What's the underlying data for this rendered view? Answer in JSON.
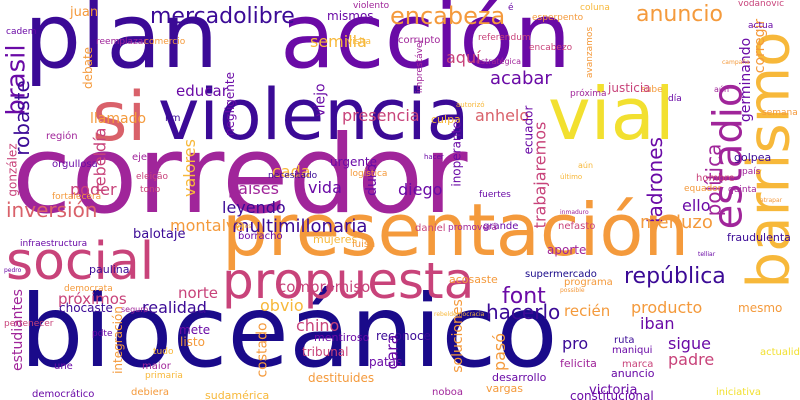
{
  "title": "",
  "palette": {
    "deep_blue": "#1a0a8a",
    "indigo": "#3b0a96",
    "violet": "#6a0aa6",
    "magenta": "#a0259a",
    "pink": "#c8437a",
    "rose": "#d9616a",
    "orange": "#f49a3c",
    "amber": "#f7b83a",
    "yellow": "#f2e030",
    "purple": "#8a17a0"
  },
  "words": [
    {
      "text": "corredor",
      "color": "#a0259a",
      "orient": "h"
    },
    {
      "text": "bioceánico",
      "color": "#1a0a8a",
      "orient": "h"
    },
    {
      "text": "plan",
      "color": "#3b0a96",
      "orient": "h"
    },
    {
      "text": "acción",
      "color": "#6a0aa6",
      "orient": "h"
    },
    {
      "text": "presentación",
      "color": "#f49a3c",
      "orient": "h"
    },
    {
      "text": "violencia",
      "color": "#3b0a96",
      "orient": "h"
    },
    {
      "text": "vial",
      "color": "#f2e030",
      "orient": "h"
    },
    {
      "text": "si",
      "color": "#d9616a",
      "orient": "h"
    },
    {
      "text": "social",
      "color": "#c8437a",
      "orient": "h"
    },
    {
      "text": "barrismo",
      "color": "#f7b83a",
      "orient": "v"
    },
    {
      "text": "propuesta",
      "color": "#c8437a",
      "orient": "h"
    },
    {
      "text": "estadio",
      "color": "#a0259a",
      "orient": "v"
    },
    {
      "text": "brasil",
      "color": "#6a0aa6",
      "orient": "v"
    },
    {
      "text": "mercadolibre",
      "color": "#3b0a96",
      "orient": "h"
    },
    {
      "text": "encabeza",
      "color": "#f49a3c",
      "orient": "h"
    },
    {
      "text": "anuncio",
      "color": "#f49a3c",
      "orient": "h"
    },
    {
      "text": "república",
      "color": "#3b0a96",
      "orient": "h"
    },
    {
      "text": "font",
      "color": "#6a0aa6",
      "orient": "h"
    },
    {
      "text": "inversión",
      "color": "#d9616a",
      "orient": "h"
    },
    {
      "text": "multimillonaria",
      "color": "#3b0a96",
      "orient": "h"
    },
    {
      "text": "hacerlo",
      "color": "#3b0a96",
      "orient": "h"
    },
    {
      "text": "política",
      "color": "#a0259a",
      "orient": "v"
    },
    {
      "text": "ladrones",
      "color": "#6a0aa6",
      "orient": "v"
    },
    {
      "text": "presencia",
      "color": "#c8437a",
      "orient": "h"
    },
    {
      "text": "acabar",
      "color": "#6a0aa6",
      "orient": "h"
    },
    {
      "text": "aquí",
      "color": "#c8437a",
      "orient": "h"
    },
    {
      "text": "semilla",
      "color": "#f7b83a",
      "orient": "h"
    },
    {
      "text": "educar",
      "color": "#6a0aa6",
      "orient": "h"
    },
    {
      "text": "llamado",
      "color": "#f49a3c",
      "orient": "h"
    },
    {
      "text": "anhelo",
      "color": "#d9616a",
      "orient": "h"
    },
    {
      "text": "robaste",
      "color": "#3b0a96",
      "orient": "v"
    },
    {
      "text": "rebeldía",
      "color": "#c8437a",
      "orient": "v"
    },
    {
      "text": "germinando",
      "color": "#6a0aa6",
      "orient": "v"
    },
    {
      "text": "corregir",
      "color": "#f49a3c",
      "orient": "v"
    },
    {
      "text": "valores",
      "color": "#f7b83a",
      "orient": "v"
    },
    {
      "text": "trabajaremos",
      "color": "#c8437a",
      "orient": "v"
    },
    {
      "text": "cada",
      "color": "#f7b83a",
      "orient": "h"
    },
    {
      "text": "poder",
      "color": "#c8437a",
      "orient": "h"
    },
    {
      "text": "países",
      "color": "#a0259a",
      "orient": "h"
    },
    {
      "text": "vida",
      "color": "#6a0aa6",
      "orient": "h"
    },
    {
      "text": "leyendo",
      "color": "#3b0a96",
      "orient": "h"
    },
    {
      "text": "diego",
      "color": "#6a0aa6",
      "orient": "h"
    },
    {
      "text": "ello",
      "color": "#6a0aa6",
      "orient": "h"
    },
    {
      "text": "merluzo",
      "color": "#f49a3c",
      "orient": "h"
    },
    {
      "text": "montalva",
      "color": "#f49a3c",
      "orient": "h"
    },
    {
      "text": "norte",
      "color": "#c8437a",
      "orient": "h"
    },
    {
      "text": "realidad",
      "color": "#3b0a96",
      "orient": "h"
    },
    {
      "text": "obvio",
      "color": "#f7b83a",
      "orient": "h"
    },
    {
      "text": "compromiso",
      "color": "#c8437a",
      "orient": "h"
    },
    {
      "text": "producto",
      "color": "#f49a3c",
      "orient": "h"
    },
    {
      "text": "chino",
      "color": "#c8437a",
      "orient": "h"
    },
    {
      "text": "costado",
      "color": "#f49a3c",
      "orient": "v"
    },
    {
      "text": "estudiantes",
      "color": "#a0259a",
      "orient": "v"
    },
    {
      "text": "próximos",
      "color": "#c8437a",
      "orient": "h"
    },
    {
      "text": "sigue",
      "color": "#6a0aa6",
      "orient": "h"
    },
    {
      "text": "padre",
      "color": "#c8437a",
      "orient": "h"
    },
    {
      "text": "pro",
      "color": "#3b0a96",
      "orient": "h"
    },
    {
      "text": "iban",
      "color": "#6a0aa6",
      "orient": "h"
    },
    {
      "text": "recién",
      "color": "#f49a3c",
      "orient": "h"
    },
    {
      "text": "pasó",
      "color": "#f49a3c",
      "orient": "v"
    },
    {
      "text": "cara",
      "color": "#6a0aa6",
      "orient": "v"
    },
    {
      "text": "soluciones",
      "color": "#f49a3c",
      "orient": "v"
    },
    {
      "text": "duro",
      "color": "#6a0aa6",
      "orient": "v"
    },
    {
      "text": "viejo",
      "color": "#6a0aa6",
      "orient": "v"
    },
    {
      "text": "juan",
      "color": "#f49a3c",
      "orient": "h"
    },
    {
      "text": "mismos",
      "color": "#6a0aa6",
      "orient": "h"
    },
    {
      "text": "vodanovic",
      "color": "#c8437a",
      "orient": "h"
    },
    {
      "text": "coluna",
      "color": "#f7b83a",
      "orient": "h"
    },
    {
      "text": "esperpento",
      "color": "#f49a3c",
      "orient": "h"
    },
    {
      "text": "violento",
      "color": "#a0259a",
      "orient": "h"
    },
    {
      "text": "referendum",
      "color": "#c8437a",
      "orient": "h"
    },
    {
      "text": "corrupto",
      "color": "#a0259a",
      "orient": "h"
    },
    {
      "text": "visita",
      "color": "#f7b83a",
      "orient": "h"
    },
    {
      "text": "reemplazar",
      "color": "#a0259a",
      "orient": "h"
    },
    {
      "text": "comercio",
      "color": "#f49a3c",
      "orient": "h"
    },
    {
      "text": "cadem",
      "color": "#6a0aa6",
      "orient": "h"
    },
    {
      "text": "sube",
      "color": "#f49a3c",
      "orient": "h"
    },
    {
      "text": "justicia",
      "color": "#c8437a",
      "orient": "h"
    },
    {
      "text": "culpa",
      "color": "#f7b83a",
      "orient": "h"
    },
    {
      "text": "urgente",
      "color": "#6a0aa6",
      "orient": "h"
    },
    {
      "text": "logística",
      "color": "#f49a3c",
      "orient": "h"
    },
    {
      "text": "necesitado",
      "color": "#3b0a96",
      "orient": "h"
    },
    {
      "text": "mujeres",
      "color": "#f7b83a",
      "orient": "h"
    },
    {
      "text": "luisa",
      "color": "#f49a3c",
      "orient": "h"
    },
    {
      "text": "daniel",
      "color": "#c8437a",
      "orient": "h"
    },
    {
      "text": "grande",
      "color": "#6a0aa6",
      "orient": "h"
    },
    {
      "text": "nefasto",
      "color": "#c8437a",
      "orient": "h"
    },
    {
      "text": "aporte",
      "color": "#a0259a",
      "orient": "h"
    },
    {
      "text": "supermercado",
      "color": "#1a0a8a",
      "orient": "h"
    },
    {
      "text": "acosaste",
      "color": "#f49a3c",
      "orient": "h"
    },
    {
      "text": "balotaje",
      "color": "#3b0a96",
      "orient": "h"
    },
    {
      "text": "borracho",
      "color": "#6a0aa6",
      "orient": "h"
    },
    {
      "text": "paulina",
      "color": "#3b0a96",
      "orient": "h"
    },
    {
      "text": "infraestructura",
      "color": "#6a0aa6",
      "orient": "h"
    },
    {
      "text": "chocaste",
      "color": "#3b0a96",
      "orient": "h"
    },
    {
      "text": "seguro",
      "color": "#a0259a",
      "orient": "h"
    },
    {
      "text": "democrata",
      "color": "#f49a3c",
      "orient": "h"
    },
    {
      "text": "mete",
      "color": "#6a0aa6",
      "orient": "h"
    },
    {
      "text": "listo",
      "color": "#f49a3c",
      "orient": "h"
    },
    {
      "text": "reconoce",
      "color": "#3b0a96",
      "orient": "h"
    },
    {
      "text": "mentiroso",
      "color": "#6a0aa6",
      "orient": "h"
    },
    {
      "text": "tribunal",
      "color": "#c8437a",
      "orient": "h"
    },
    {
      "text": "patas",
      "color": "#6a0aa6",
      "orient": "h"
    },
    {
      "text": "destituides",
      "color": "#f49a3c",
      "orient": "h"
    },
    {
      "text": "sudamérica",
      "color": "#f7b83a",
      "orient": "h"
    },
    {
      "text": "noboa",
      "color": "#a0259a",
      "orient": "h"
    },
    {
      "text": "vargas",
      "color": "#f49a3c",
      "orient": "h"
    },
    {
      "text": "victoria",
      "color": "#6a0aa6",
      "orient": "h"
    },
    {
      "text": "constitucional",
      "color": "#6a0aa6",
      "orient": "h"
    },
    {
      "text": "iniciativa",
      "color": "#f2e030",
      "orient": "h"
    },
    {
      "text": "actualidad",
      "color": "#f2e030",
      "orient": "h"
    },
    {
      "text": "democrático",
      "color": "#6a0aa6",
      "orient": "h"
    },
    {
      "text": "debiera",
      "color": "#f49a3c",
      "orient": "h"
    },
    {
      "text": "maior",
      "color": "#a0259a",
      "orient": "h"
    },
    {
      "text": "une",
      "color": "#6a0aa6",
      "orient": "h"
    },
    {
      "text": "primaria",
      "color": "#f7b83a",
      "orient": "h"
    },
    {
      "text": "desarrollo",
      "color": "#6a0aa6",
      "orient": "h"
    },
    {
      "text": "anuncio",
      "color": "#6a0aa6",
      "orient": "h"
    },
    {
      "text": "felicita",
      "color": "#a0259a",
      "orient": "h"
    },
    {
      "text": "marca",
      "color": "#c8437a",
      "orient": "h"
    },
    {
      "text": "maniqui",
      "color": "#6a0aa6",
      "orient": "h"
    },
    {
      "text": "ruta",
      "color": "#3b0a96",
      "orient": "h"
    },
    {
      "text": "mesmo",
      "color": "#f49a3c",
      "orient": "h"
    },
    {
      "text": "programa",
      "color": "#f49a3c",
      "orient": "h"
    },
    {
      "text": "pdte",
      "color": "#6a0aa6",
      "orient": "h"
    },
    {
      "text": "tudo",
      "color": "#f7b83a",
      "orient": "h"
    },
    {
      "text": "integración",
      "color": "#f49a3c",
      "orient": "v"
    },
    {
      "text": "pertenecer",
      "color": "#c8437a",
      "orient": "h"
    },
    {
      "text": "ejes",
      "color": "#a0259a",
      "orient": "h"
    },
    {
      "text": "eleição",
      "color": "#c8437a",
      "orient": "h"
    },
    {
      "text": "tono",
      "color": "#c8437a",
      "orient": "h"
    },
    {
      "text": "hombre",
      "color": "#c8437a",
      "orient": "h"
    },
    {
      "text": "equador",
      "color": "#f49a3c",
      "orient": "h"
    },
    {
      "text": "fuertes",
      "color": "#6a0aa6",
      "orient": "h"
    },
    {
      "text": "quinta",
      "color": "#a0259a",
      "orient": "h"
    },
    {
      "text": "golpea",
      "color": "#3b0a96",
      "orient": "h"
    },
    {
      "text": "país",
      "color": "#a0259a",
      "orient": "h"
    },
    {
      "text": "fraudulenta",
      "color": "#3b0a96",
      "orient": "h"
    },
    {
      "text": "semana",
      "color": "#f49a3c",
      "orient": "h"
    },
    {
      "text": "día",
      "color": "#6a0aa6",
      "orient": "h"
    },
    {
      "text": "actua",
      "color": "#6a0aa6",
      "orient": "h"
    },
    {
      "text": "promoverá",
      "color": "#a0259a",
      "orient": "h"
    },
    {
      "text": "gonzález",
      "color": "#c8437a",
      "orient": "v"
    },
    {
      "text": "orgullosa",
      "color": "#6a0aa6",
      "orient": "h"
    },
    {
      "text": "fortalecerá",
      "color": "#f49a3c",
      "orient": "h"
    },
    {
      "text": "región",
      "color": "#a0259a",
      "orient": "h"
    },
    {
      "text": "encabezo",
      "color": "#c8437a",
      "orient": "h"
    },
    {
      "text": "avanzamos",
      "color": "#f49a3c",
      "orient": "v"
    },
    {
      "text": "próxima",
      "color": "#a0259a",
      "orient": "h"
    },
    {
      "text": "ecuador",
      "color": "#6a0aa6",
      "orient": "v"
    },
    {
      "text": "debate",
      "color": "#f49a3c",
      "orient": "v"
    },
    {
      "text": "inoperante",
      "color": "#6a0aa6",
      "orient": "v"
    },
    {
      "text": "negligente",
      "color": "#6a0aa6",
      "orient": "v"
    },
    {
      "text": "imprestável",
      "color": "#a0259a",
      "orient": "v"
    },
    {
      "text": "estratégica",
      "color": "#a0259a",
      "orient": "h"
    },
    {
      "text": "é",
      "color": "#6a0aa6",
      "orient": "h"
    },
    {
      "text": "km",
      "color": "#3b0a96",
      "orient": "h"
    },
    {
      "text": "hacer",
      "color": "#6a0aa6",
      "orient": "h"
    },
    {
      "text": "último",
      "color": "#f7b83a",
      "orient": "h"
    },
    {
      "text": "aún",
      "color": "#f7b83a",
      "orient": "h"
    },
    {
      "text": "aún",
      "color": "#a0259a",
      "orient": "h"
    },
    {
      "text": "pedro",
      "color": "#6a0aa6",
      "orient": "h"
    },
    {
      "text": "atrapar",
      "color": "#f49a3c",
      "orient": "h"
    },
    {
      "text": "inmaduro",
      "color": "#a0259a",
      "orient": "h"
    },
    {
      "text": "telliar",
      "color": "#6a0aa6",
      "orient": "h"
    },
    {
      "text": "possible",
      "color": "#f49a3c",
      "orient": "h"
    },
    {
      "text": "autorizó",
      "color": "#f7b83a",
      "orient": "h"
    },
    {
      "text": "rebeldemocracia",
      "color": "#f7b83a",
      "orient": "h"
    },
    {
      "text": "campaña",
      "color": "#f49a3c",
      "orient": "h"
    },
    {
      "text": "artes",
      "color": "#f7b83a",
      "orient": "h"
    }
  ]
}
